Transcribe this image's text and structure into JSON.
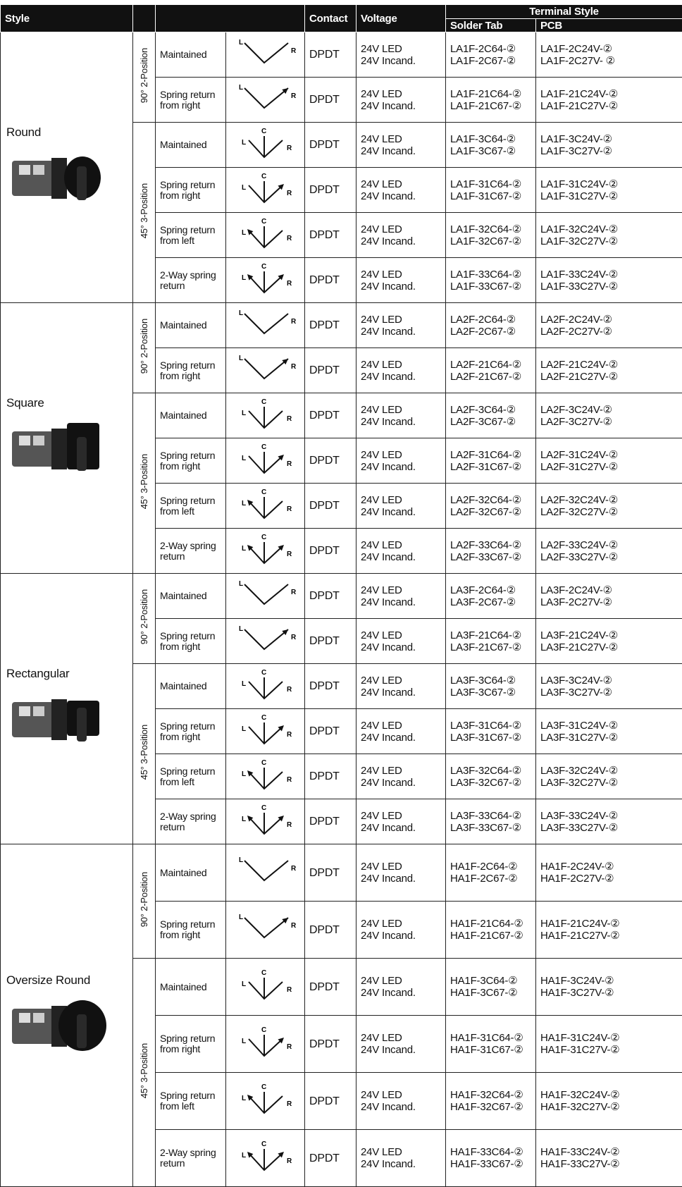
{
  "header": {
    "style": "Style",
    "contact": "Contact",
    "voltage": "Voltage",
    "terminal_style": "Terminal Style",
    "solder_tab": "Solder Tab",
    "pcb": "PCB"
  },
  "groups": [
    {
      "style": "Round",
      "positions": [
        {
          "label": "90° 2-Position",
          "diagram_labels": [
            "L",
            "R"
          ],
          "rows": [
            {
              "operation": "Maintained",
              "contact": "DPDT",
              "voltage": [
                "24V LED",
                "24V Incand."
              ],
              "solder_tab": [
                "LA1F-2C64-②",
                "LA1F-2C67-②"
              ],
              "pcb": [
                "LA1F-2C24V-②",
                "LA1F-2C27V- ②"
              ]
            },
            {
              "operation": "Spring return from right",
              "contact": "DPDT",
              "voltage": [
                "24V LED",
                "24V Incand."
              ],
              "solder_tab": [
                "LA1F-21C64-②",
                "LA1F-21C67-②"
              ],
              "pcb": [
                "LA1F-21C24V-②",
                "LA1F-21C27V-②"
              ]
            }
          ]
        },
        {
          "label": "45° 3-Position",
          "diagram_labels": [
            "L",
            "C",
            "R"
          ],
          "rows": [
            {
              "operation": "Maintained",
              "contact": "DPDT",
              "voltage": [
                "24V LED",
                "24V Incand."
              ],
              "solder_tab": [
                "LA1F-3C64-②",
                "LA1F-3C67-②"
              ],
              "pcb": [
                "LA1F-3C24V-②",
                "LA1F-3C27V-②"
              ]
            },
            {
              "operation": "Spring return from right",
              "contact": "DPDT",
              "voltage": [
                "24V LED",
                "24V Incand."
              ],
              "solder_tab": [
                "LA1F-31C64-②",
                "LA1F-31C67-②"
              ],
              "pcb": [
                "LA1F-31C24V-②",
                "LA1F-31C27V-②"
              ]
            },
            {
              "operation": "Spring return from left",
              "contact": "DPDT",
              "voltage": [
                "24V LED",
                "24V Incand."
              ],
              "solder_tab": [
                "LA1F-32C64-②",
                "LA1F-32C67-②"
              ],
              "pcb": [
                "LA1F-32C24V-②",
                "LA1F-32C27V-②"
              ]
            },
            {
              "operation": "2-Way spring return",
              "contact": "DPDT",
              "voltage": [
                "24V LED",
                "24V Incand."
              ],
              "solder_tab": [
                "LA1F-33C64-②",
                "LA1F-33C67-②"
              ],
              "pcb": [
                "LA1F-33C24V-②",
                "LA1F-33C27V-②"
              ]
            }
          ]
        }
      ]
    },
    {
      "style": "Square",
      "positions": [
        {
          "label": "90° 2-Position",
          "diagram_labels": [
            "L",
            "R"
          ],
          "rows": [
            {
              "operation": "Maintained",
              "contact": "DPDT",
              "voltage": [
                "24V LED",
                "24V Incand."
              ],
              "solder_tab": [
                "LA2F-2C64-②",
                "LA2F-2C67-②"
              ],
              "pcb": [
                "LA2F-2C24V-②",
                "LA2F-2C27V-②"
              ]
            },
            {
              "operation": "Spring return from right",
              "contact": "DPDT",
              "voltage": [
                "24V LED",
                "24V Incand."
              ],
              "solder_tab": [
                "LA2F-21C64-②",
                "LA2F-21C67-②"
              ],
              "pcb": [
                "LA2F-21C24V-②",
                "LA2F-21C27V-②"
              ]
            }
          ]
        },
        {
          "label": "45° 3-Position",
          "diagram_labels": [
            "L",
            "C",
            "R"
          ],
          "rows": [
            {
              "operation": "Maintained",
              "contact": "DPDT",
              "voltage": [
                "24V LED",
                "24V Incand."
              ],
              "solder_tab": [
                "LA2F-3C64-②",
                "LA2F-3C67-②"
              ],
              "pcb": [
                "LA2F-3C24V-②",
                "LA2F-3C27V-②"
              ]
            },
            {
              "operation": "Spring return from right",
              "contact": "DPDT",
              "voltage": [
                "24V LED",
                "24V Incand."
              ],
              "solder_tab": [
                "LA2F-31C64-②",
                "LA2F-31C67-②"
              ],
              "pcb": [
                "LA2F-31C24V-②",
                "LA2F-31C27V-②"
              ]
            },
            {
              "operation": "Spring return from left",
              "contact": "DPDT",
              "voltage": [
                "24V LED",
                "24V Incand."
              ],
              "solder_tab": [
                "LA2F-32C64-②",
                "LA2F-32C67-②"
              ],
              "pcb": [
                "LA2F-32C24V-②",
                "LA2F-32C27V-②"
              ]
            },
            {
              "operation": "2-Way spring return",
              "contact": "DPDT",
              "voltage": [
                "24V LED",
                "24V Incand."
              ],
              "solder_tab": [
                "LA2F-33C64-②",
                "LA2F-33C67-②"
              ],
              "pcb": [
                "LA2F-33C24V-②",
                "LA2F-33C27V-②"
              ]
            }
          ]
        }
      ]
    },
    {
      "style": "Rectangular",
      "positions": [
        {
          "label": "90° 2-Position",
          "diagram_labels": [
            "L",
            "R"
          ],
          "rows": [
            {
              "operation": "Maintained",
              "contact": "DPDT",
              "voltage": [
                "24V LED",
                "24V Incand."
              ],
              "solder_tab": [
                "LA3F-2C64-②",
                "LA3F-2C67-②"
              ],
              "pcb": [
                "LA3F-2C24V-②",
                "LA3F-2C27V-②"
              ]
            },
            {
              "operation": "Spring return from right",
              "contact": "DPDT",
              "voltage": [
                "24V LED",
                "24V Incand."
              ],
              "solder_tab": [
                "LA3F-21C64-②",
                "LA3F-21C67-②"
              ],
              "pcb": [
                "LA3F-21C24V-②",
                "LA3F-21C27V-②"
              ]
            }
          ]
        },
        {
          "label": "45° 3-Position",
          "diagram_labels": [
            "L",
            "C",
            "R"
          ],
          "rows": [
            {
              "operation": "Maintained",
              "contact": "DPDT",
              "voltage": [
                "24V LED",
                "24V Incand."
              ],
              "solder_tab": [
                "LA3F-3C64-②",
                "LA3F-3C67-②"
              ],
              "pcb": [
                "LA3F-3C24V-②",
                "LA3F-3C27V-②"
              ]
            },
            {
              "operation": "Spring return from right",
              "contact": "DPDT",
              "voltage": [
                "24V LED",
                "24V Incand."
              ],
              "solder_tab": [
                "LA3F-31C64-②",
                "LA3F-31C67-②"
              ],
              "pcb": [
                "LA3F-31C24V-②",
                "LA3F-31C27V-②"
              ]
            },
            {
              "operation": "Spring return from left",
              "contact": "DPDT",
              "voltage": [
                "24V LED",
                "24V Incand."
              ],
              "solder_tab": [
                "LA3F-32C64-②",
                "LA3F-32C67-②"
              ],
              "pcb": [
                "LA3F-32C24V-②",
                "LA3F-32C27V-②"
              ]
            },
            {
              "operation": "2-Way spring return",
              "contact": "DPDT",
              "voltage": [
                "24V LED",
                "24V Incand."
              ],
              "solder_tab": [
                "LA3F-33C64-②",
                "LA3F-33C67-②"
              ],
              "pcb": [
                "LA3F-33C24V-②",
                "LA3F-33C27V-②"
              ]
            }
          ]
        }
      ]
    },
    {
      "style": "Oversize Round",
      "positions": [
        {
          "label": "90° 2-Position",
          "diagram_labels": [
            "L",
            "R"
          ],
          "rows": [
            {
              "operation": "Maintained",
              "contact": "DPDT",
              "voltage": [
                "24V LED",
                "24V Incand."
              ],
              "solder_tab": [
                "HA1F-2C64-②",
                "HA1F-2C67-②"
              ],
              "pcb": [
                "HA1F-2C24V-②",
                "HA1F-2C27V-②"
              ]
            },
            {
              "operation": "Spring return from right",
              "contact": "DPDT",
              "voltage": [
                "24V LED",
                "24V Incand."
              ],
              "solder_tab": [
                "HA1F-21C64-②",
                "HA1F-21C67-②"
              ],
              "pcb": [
                "HA1F-21C24V-②",
                "HA1F-21C27V-②"
              ]
            }
          ]
        },
        {
          "label": "45° 3-Position",
          "diagram_labels": [
            "L",
            "C",
            "R"
          ],
          "rows": [
            {
              "operation": "Maintained",
              "contact": "DPDT",
              "voltage": [
                "24V LED",
                "24V Incand."
              ],
              "solder_tab": [
                "HA1F-3C64-②",
                "HA1F-3C67-②"
              ],
              "pcb": [
                "HA1F-3C24V-②",
                "HA1F-3C27V-②"
              ]
            },
            {
              "operation": "Spring return from right",
              "contact": "DPDT",
              "voltage": [
                "24V LED",
                "24V Incand."
              ],
              "solder_tab": [
                "HA1F-31C64-②",
                "HA1F-31C67-②"
              ],
              "pcb": [
                "HA1F-31C24V-②",
                "HA1F-31C27V-②"
              ]
            },
            {
              "operation": "Spring return from left",
              "contact": "DPDT",
              "voltage": [
                "24V LED",
                "24V Incand."
              ],
              "solder_tab": [
                "HA1F-32C64-②",
                "HA1F-32C67-②"
              ],
              "pcb": [
                "HA1F-32C24V-②",
                "HA1F-32C27V-②"
              ]
            },
            {
              "operation": "2-Way spring return",
              "contact": "DPDT",
              "voltage": [
                "24V LED",
                "24V Incand."
              ],
              "solder_tab": [
                "HA1F-33C64-②",
                "HA1F-33C67-②"
              ],
              "pcb": [
                "HA1F-33C24V-②",
                "HA1F-33C27V-②"
              ]
            }
          ]
        }
      ]
    }
  ]
}
